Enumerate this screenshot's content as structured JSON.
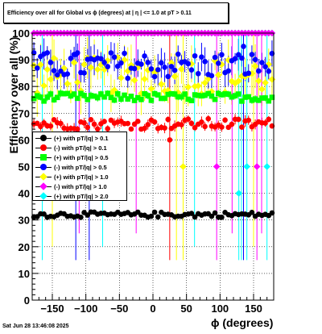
{
  "header": {
    "title": "Efficiency over all for Global vs ϕ (degrees) at |   η  | <= 1.0 at pT > 0.11"
  },
  "footer": {
    "timestamp": "Sat Jun 28 13:46:08 2025"
  },
  "colors": {
    "black": "#000000",
    "red": "#ff0000",
    "green": "#00ff00",
    "blue": "#0000ff",
    "yellow": "#ffff00",
    "magenta": "#ff00ff",
    "cyan": "#00ffff"
  },
  "chart_data": {
    "type": "scatter",
    "title": "Efficiency over all for Global vs ϕ (degrees) at |   η  | <= 1.0 at pT > 0.11",
    "xlabel": "ϕ (degrees)",
    "ylabel": "Efficiency over all (%)",
    "xlim": [
      -180,
      180
    ],
    "ylim": [
      0,
      100
    ],
    "xticks": [
      -150,
      -100,
      -50,
      0,
      50,
      100,
      150
    ],
    "yticks": [
      0,
      10,
      20,
      30,
      40,
      50,
      60,
      70,
      80,
      90,
      100
    ],
    "grid": true,
    "legend_position": "middle-left",
    "series": [
      {
        "name": "(+) with pT/|q| > 0.1",
        "color": "#000000",
        "marker": "circle",
        "y_approx": 32,
        "spread": 1,
        "err": 0.6
      },
      {
        "name": "(-) with pT/|q| > 0.1",
        "color": "#ff0000",
        "marker": "circle",
        "y_approx": 66,
        "spread": 2,
        "err": 1.5
      },
      {
        "name": "(+) with pT/|q| > 0.5",
        "color": "#00ff00",
        "marker": "square",
        "y_approx": 76,
        "spread": 1.5,
        "err": 1
      },
      {
        "name": "(-) with pT/|q| > 0.5",
        "color": "#0000ff",
        "marker": "circle",
        "y_approx": 88,
        "spread": 5,
        "err": 4
      },
      {
        "name": "(+) with pT/|q| > 1.0",
        "color": "#ffff00",
        "marker": "diamond",
        "y_approx": 84,
        "spread": 7,
        "err": 6
      },
      {
        "name": "(-) with pT/|q| > 1.0",
        "color": "#ff00ff",
        "marker": "diamond",
        "y_approx": 100,
        "spread": 0,
        "err": 0
      },
      {
        "name": "(+) with pT/|q| > 2.0",
        "color": "#00ffff",
        "marker": "diamond",
        "y_approx": 100,
        "spread": 0,
        "err": 0
      }
    ],
    "outliers": [
      {
        "series": 1,
        "x": 25,
        "y": 60
      },
      {
        "series": 4,
        "x": 45,
        "y": 50
      },
      {
        "series": 5,
        "x": 95,
        "y": 50
      },
      {
        "series": 6,
        "x": 128,
        "y": 40
      },
      {
        "series": 6,
        "x": 140,
        "y": 50
      },
      {
        "series": 5,
        "x": 155,
        "y": 50
      },
      {
        "series": 6,
        "x": 170,
        "y": 50
      },
      {
        "series": 3,
        "x": 135,
        "y": 95
      },
      {
        "series": 3,
        "x": -115,
        "y": 92
      }
    ]
  }
}
